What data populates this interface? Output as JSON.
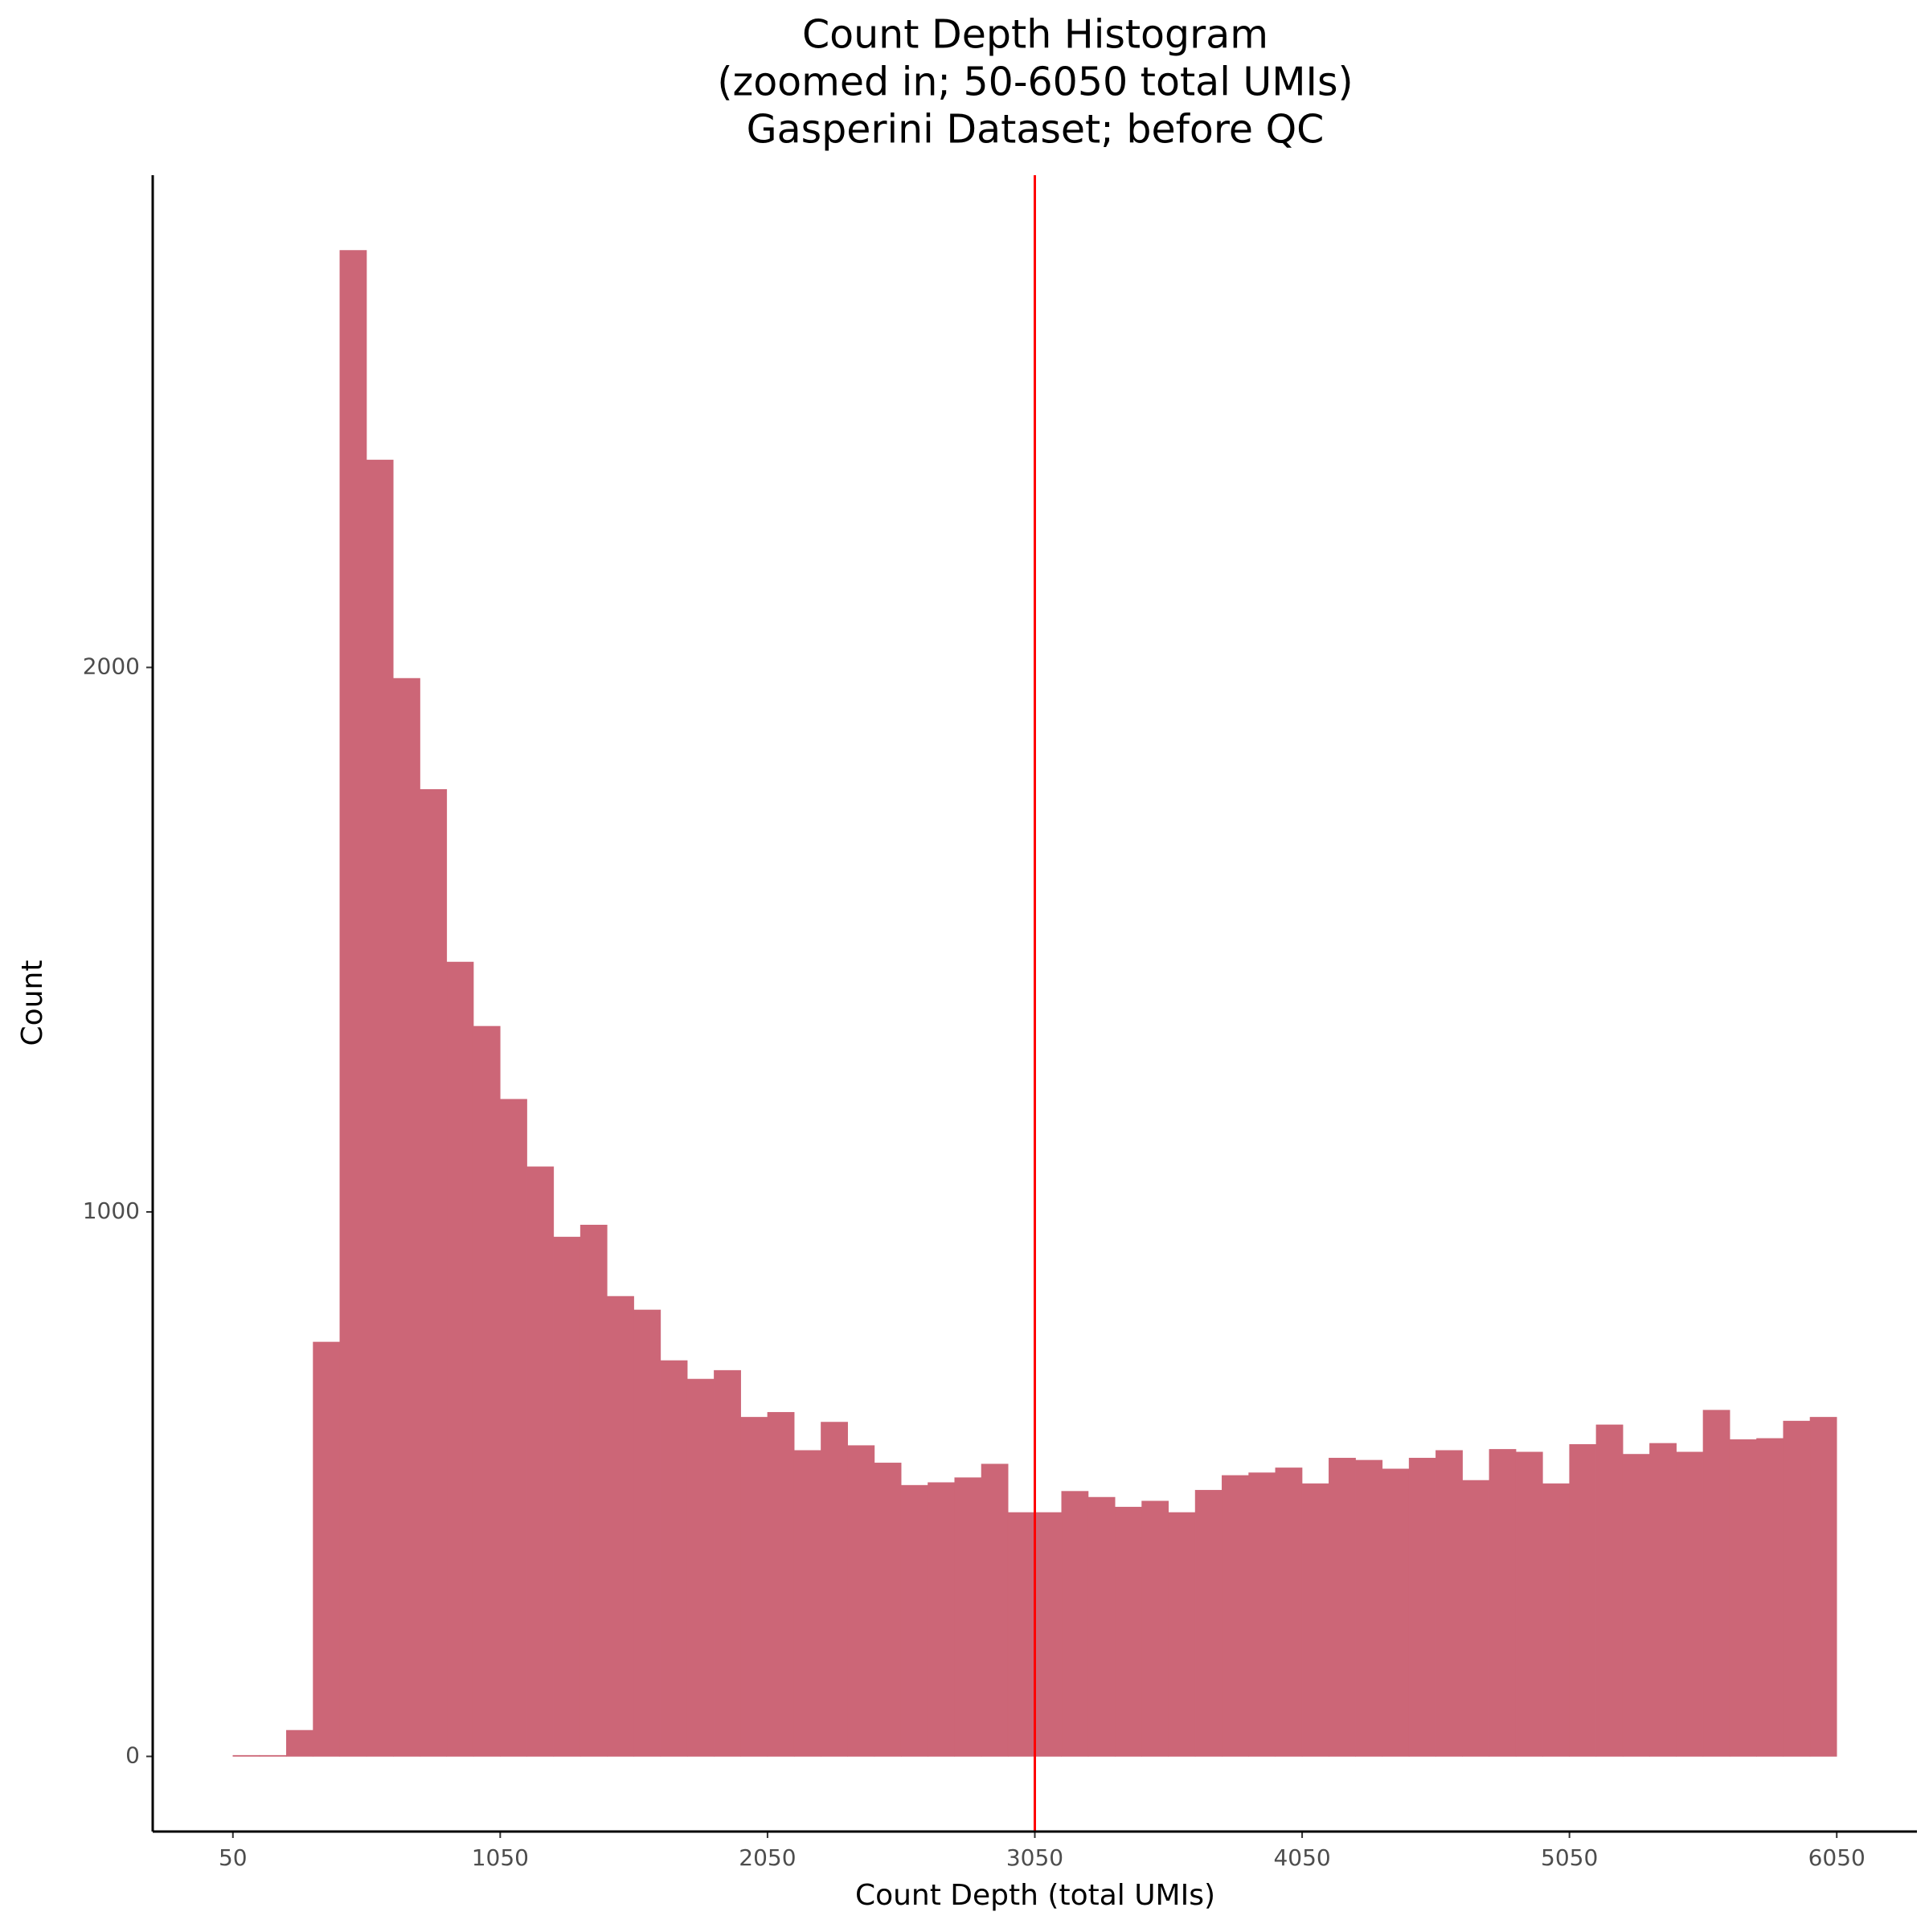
{
  "chart_data": {
    "type": "histogram",
    "title": [
      "Count Depth Histogram",
      "(zoomed in; 50-6050 total UMIs)",
      "Gasperini Dataset; before QC"
    ],
    "x_label": "Count Depth (total UMIs)",
    "y_label": "Count",
    "bins": [
      50,
      150,
      250,
      350,
      450,
      550,
      650,
      750,
      850,
      950,
      1050,
      1150,
      1250,
      1350,
      1450,
      1550,
      1650,
      1750,
      1850,
      1950,
      2050,
      2150,
      2250,
      2350,
      2450,
      2550,
      2650,
      2750,
      2850,
      2950,
      3050,
      3150,
      3250,
      3350,
      3450,
      3550,
      3650,
      3750,
      3850,
      3950,
      4050,
      4150,
      4250,
      4350,
      4450,
      4550,
      4650,
      4750,
      4850,
      4950,
      5050,
      5150,
      5250,
      5350,
      5450,
      5550,
      5650,
      5750,
      5850,
      5950,
      6050
    ],
    "counts": [
      2,
      2,
      48,
      761,
      2766,
      2381,
      1980,
      1776,
      1459,
      1341,
      1207,
      1083,
      954,
      976,
      845,
      820,
      727,
      693,
      709,
      623,
      632,
      562,
      614,
      571,
      539,
      498,
      503,
      512,
      537,
      448,
      448,
      487,
      476,
      458,
      469,
      448,
      489,
      516,
      521,
      530,
      501,
      548,
      544,
      528,
      548,
      562,
      507,
      564,
      559,
      501,
      573,
      609,
      555,
      575,
      559,
      636,
      582,
      584,
      616,
      623
    ],
    "color": "#cc6677",
    "vline": 3050,
    "vline_color": "#ff0000",
    "xlim": [
      -250,
      6350
    ],
    "ylim": [
      -138,
      2904
    ],
    "xticks": [
      50,
      1050,
      2050,
      3050,
      4050,
      5050,
      6050
    ],
    "yticks": [
      0,
      1000,
      2000
    ],
    "grid": false
  }
}
